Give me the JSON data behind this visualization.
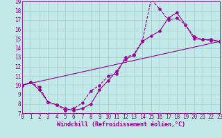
{
  "xlabel": "Windchill (Refroidissement éolien,°C)",
  "bg_color": "#c2e8e8",
  "grid_color": "#a8d4d4",
  "line_color": "#990099",
  "xmin": 0,
  "xmax": 23,
  "ymin": 7,
  "ymax": 19,
  "series1_x": [
    0,
    1,
    2,
    3,
    4,
    5,
    6,
    7,
    8,
    9,
    10,
    11,
    12,
    13,
    14,
    15,
    16,
    17,
    18,
    19,
    20,
    21,
    22,
    23
  ],
  "series1_y": [
    10.0,
    10.3,
    9.8,
    8.2,
    7.9,
    7.3,
    7.5,
    8.1,
    9.4,
    10.0,
    11.0,
    11.2,
    13.0,
    13.3,
    14.8,
    19.2,
    18.2,
    17.0,
    17.2,
    16.5,
    15.2,
    14.9,
    14.8,
    14.7
  ],
  "series2_x": [
    0,
    1,
    2,
    3,
    4,
    5,
    6,
    7,
    8,
    9,
    10,
    11,
    12,
    13,
    14,
    15,
    16,
    17,
    18,
    19,
    20,
    21,
    22,
    23
  ],
  "series2_y": [
    10.0,
    10.3,
    9.5,
    8.2,
    7.9,
    7.5,
    7.3,
    7.5,
    8.0,
    9.5,
    10.5,
    11.5,
    12.8,
    13.2,
    14.7,
    15.3,
    15.8,
    17.2,
    17.8,
    16.5,
    15.0,
    14.9,
    14.9,
    14.7
  ],
  "series3_x": [
    0,
    23
  ],
  "series3_y": [
    10.0,
    14.7
  ],
  "font_color": "#880088",
  "tick_fontsize": 5.5,
  "label_fontsize": 6.0,
  "markersize": 2.2,
  "linewidth": 0.8
}
